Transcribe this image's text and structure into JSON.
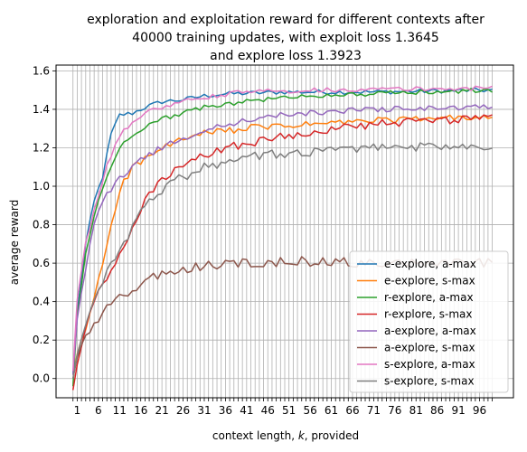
{
  "chart_data": {
    "type": "line",
    "title_lines": [
      "exploration and exploitation reward for different contexts after",
      "40000 training updates, with exploit loss 1.3645",
      "and explore loss 1.3923"
    ],
    "xlabel": "context length, k, provided",
    "ylabel": "average reward",
    "xlim": [
      -4,
      104
    ],
    "ylim": [
      -0.1,
      1.63
    ],
    "x_ticks": [
      1,
      6,
      11,
      16,
      21,
      26,
      31,
      36,
      41,
      46,
      51,
      56,
      61,
      66,
      71,
      76,
      81,
      86,
      91,
      96
    ],
    "y_ticks": [
      0.0,
      0.2,
      0.4,
      0.6,
      0.8,
      1.0,
      1.2,
      1.4,
      1.6
    ],
    "y_tick_labels": [
      "0.0",
      "0.2",
      "0.4",
      "0.6",
      "0.8",
      "1.0",
      "1.2",
      "1.4",
      "1.6"
    ],
    "grid": true,
    "vertical_grid_every": 1,
    "legend_position": "lower-right",
    "x_start": 0,
    "x_end": 99,
    "series": [
      {
        "name": "e-explore, a-max",
        "color": "#1f77b4",
        "anchors": [
          [
            0,
            0.02
          ],
          [
            1,
            0.35
          ],
          [
            3,
            0.7
          ],
          [
            5,
            0.92
          ],
          [
            7,
            1.05
          ],
          [
            9,
            1.27
          ],
          [
            11,
            1.37
          ],
          [
            14,
            1.38
          ],
          [
            17,
            1.41
          ],
          [
            21,
            1.44
          ],
          [
            26,
            1.45
          ],
          [
            31,
            1.47
          ],
          [
            36,
            1.48
          ],
          [
            50,
            1.49
          ],
          [
            70,
            1.49
          ],
          [
            99,
            1.5
          ]
        ],
        "noise": 0.012
      },
      {
        "name": "e-explore, s-max",
        "color": "#ff7f0e",
        "anchors": [
          [
            0,
            0.02
          ],
          [
            1,
            0.12
          ],
          [
            3,
            0.26
          ],
          [
            5,
            0.42
          ],
          [
            7,
            0.6
          ],
          [
            9,
            0.8
          ],
          [
            11,
            0.98
          ],
          [
            14,
            1.1
          ],
          [
            17,
            1.14
          ],
          [
            20,
            1.18
          ],
          [
            23,
            1.22
          ],
          [
            30,
            1.27
          ],
          [
            40,
            1.3
          ],
          [
            55,
            1.32
          ],
          [
            70,
            1.34
          ],
          [
            99,
            1.36
          ]
        ],
        "noise": 0.018
      },
      {
        "name": "r-explore, a-max",
        "color": "#2ca02c",
        "anchors": [
          [
            0,
            -0.04
          ],
          [
            1,
            0.32
          ],
          [
            3,
            0.65
          ],
          [
            5,
            0.85
          ],
          [
            8,
            1.05
          ],
          [
            11,
            1.2
          ],
          [
            14,
            1.27
          ],
          [
            17,
            1.31
          ],
          [
            21,
            1.35
          ],
          [
            26,
            1.38
          ],
          [
            31,
            1.41
          ],
          [
            40,
            1.44
          ],
          [
            55,
            1.47
          ],
          [
            99,
            1.5
          ]
        ],
        "noise": 0.012
      },
      {
        "name": "r-explore, s-max",
        "color": "#d62728",
        "anchors": [
          [
            0,
            -0.06
          ],
          [
            2,
            0.18
          ],
          [
            5,
            0.4
          ],
          [
            8,
            0.52
          ],
          [
            11,
            0.63
          ],
          [
            14,
            0.78
          ],
          [
            17,
            0.92
          ],
          [
            21,
            1.04
          ],
          [
            26,
            1.1
          ],
          [
            31,
            1.16
          ],
          [
            36,
            1.2
          ],
          [
            45,
            1.24
          ],
          [
            55,
            1.28
          ],
          [
            70,
            1.32
          ],
          [
            99,
            1.36
          ]
        ],
        "noise": 0.022
      },
      {
        "name": "a-explore, a-max",
        "color": "#9467bd",
        "anchors": [
          [
            0,
            0.02
          ],
          [
            1,
            0.3
          ],
          [
            3,
            0.58
          ],
          [
            5,
            0.8
          ],
          [
            7,
            0.92
          ],
          [
            10,
            1.02
          ],
          [
            13,
            1.08
          ],
          [
            16,
            1.14
          ],
          [
            20,
            1.19
          ],
          [
            25,
            1.24
          ],
          [
            30,
            1.28
          ],
          [
            36,
            1.32
          ],
          [
            45,
            1.36
          ],
          [
            55,
            1.38
          ],
          [
            70,
            1.4
          ],
          [
            99,
            1.41
          ]
        ],
        "noise": 0.015
      },
      {
        "name": "a-explore, s-max",
        "color": "#8c564b",
        "anchors": [
          [
            0,
            0.0
          ],
          [
            2,
            0.18
          ],
          [
            4,
            0.25
          ],
          [
            7,
            0.34
          ],
          [
            10,
            0.4
          ],
          [
            14,
            0.46
          ],
          [
            18,
            0.52
          ],
          [
            22,
            0.55
          ],
          [
            27,
            0.57
          ],
          [
            33,
            0.59
          ],
          [
            40,
            0.6
          ],
          [
            55,
            0.61
          ],
          [
            70,
            0.6
          ],
          [
            99,
            0.6
          ]
        ],
        "noise": 0.025
      },
      {
        "name": "s-explore, a-max",
        "color": "#e377c2",
        "anchors": [
          [
            0,
            0.04
          ],
          [
            1,
            0.4
          ],
          [
            3,
            0.7
          ],
          [
            5,
            0.88
          ],
          [
            8,
            1.1
          ],
          [
            11,
            1.26
          ],
          [
            14,
            1.34
          ],
          [
            17,
            1.38
          ],
          [
            21,
            1.41
          ],
          [
            26,
            1.44
          ],
          [
            31,
            1.46
          ],
          [
            40,
            1.49
          ],
          [
            55,
            1.5
          ],
          [
            99,
            1.51
          ]
        ],
        "noise": 0.012
      },
      {
        "name": "s-explore, s-max",
        "color": "#7f7f7f",
        "anchors": [
          [
            0,
            0.0
          ],
          [
            2,
            0.2
          ],
          [
            5,
            0.42
          ],
          [
            8,
            0.56
          ],
          [
            11,
            0.66
          ],
          [
            14,
            0.78
          ],
          [
            17,
            0.9
          ],
          [
            21,
            0.98
          ],
          [
            26,
            1.05
          ],
          [
            31,
            1.1
          ],
          [
            36,
            1.13
          ],
          [
            45,
            1.16
          ],
          [
            55,
            1.18
          ],
          [
            70,
            1.2
          ],
          [
            99,
            1.21
          ]
        ],
        "noise": 0.025
      }
    ]
  }
}
